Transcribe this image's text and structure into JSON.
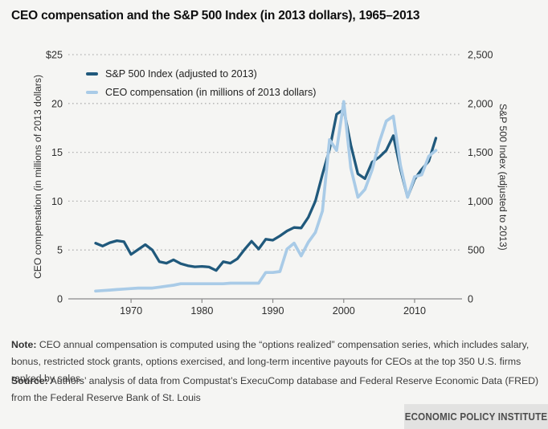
{
  "title": "CEO compensation and the S&P 500 Index (in 2013 dollars), 1965–2013",
  "chart_data": {
    "type": "line",
    "grid": "horizontal-dotted",
    "legend_position": "top-left-inside",
    "x_range": [
      1965,
      2013
    ],
    "x_ticks": [
      1970,
      1980,
      1990,
      2000,
      2010
    ],
    "left_axis": {
      "label": "CEO compensation (in millions of 2013 dollars)",
      "range": [
        0,
        25
      ],
      "tick_values": [
        25,
        20,
        15,
        10,
        5,
        0
      ],
      "ticks": [
        "$25",
        "20",
        "15",
        "10",
        "5",
        "0"
      ]
    },
    "right_axis": {
      "label": "S&P 500 Index (adjusted to 2013)",
      "range": [
        0,
        2500
      ],
      "tick_values": [
        2500,
        2000,
        1500,
        1000,
        500,
        0
      ],
      "ticks": [
        "2,500",
        "2,000",
        "1,500",
        "1,000",
        "500",
        "0"
      ]
    },
    "x": [
      1965,
      1966,
      1967,
      1968,
      1969,
      1970,
      1971,
      1972,
      1973,
      1974,
      1975,
      1976,
      1977,
      1978,
      1979,
      1980,
      1981,
      1982,
      1983,
      1984,
      1985,
      1986,
      1987,
      1988,
      1989,
      1990,
      1991,
      1992,
      1993,
      1994,
      1995,
      1996,
      1997,
      1998,
      1999,
      2000,
      2001,
      2002,
      2003,
      2004,
      2005,
      2006,
      2007,
      2008,
      2009,
      2010,
      2011,
      2012,
      2013
    ],
    "series": [
      {
        "name": "S&P 500 Index (adjusted to 2013)",
        "axis": "right",
        "color": "#20597c",
        "stroke_width": 3.3,
        "values": [
          570,
          540,
          575,
          595,
          585,
          455,
          505,
          555,
          500,
          380,
          365,
          400,
          360,
          340,
          328,
          332,
          326,
          290,
          380,
          365,
          410,
          505,
          590,
          510,
          610,
          600,
          645,
          695,
          730,
          725,
          835,
          1000,
          1275,
          1530,
          1890,
          1940,
          1575,
          1280,
          1230,
          1400,
          1450,
          1520,
          1670,
          1330,
          1040,
          1225,
          1325,
          1410,
          1645
        ]
      },
      {
        "name": "CEO compensation (in millions of 2013 dollars)",
        "axis": "left",
        "color": "#a9cbe7",
        "stroke_width": 3.7,
        "values": [
          0.8,
          0.85,
          0.9,
          0.95,
          1.0,
          1.05,
          1.1,
          1.1,
          1.1,
          1.2,
          1.3,
          1.4,
          1.55,
          1.55,
          1.55,
          1.55,
          1.55,
          1.55,
          1.55,
          1.6,
          1.6,
          1.6,
          1.6,
          1.6,
          2.7,
          2.7,
          2.8,
          5.1,
          5.7,
          4.4,
          5.8,
          6.8,
          9.0,
          16.3,
          15.2,
          20.2,
          13.4,
          10.4,
          11.2,
          13.2,
          16.0,
          18.2,
          18.7,
          13.7,
          10.4,
          12.5,
          12.7,
          14.6,
          15.2
        ]
      }
    ]
  },
  "note": {
    "label": "Note:",
    "text": " CEO annual compensation is computed using the “options realized” compensation series, which includes salary, bonus, restricted stock grants, options exercised, and long-term incentive payouts for CEOs at the top 350 U.S. firms ranked by sales."
  },
  "source": {
    "label": "Source:",
    "text": " Authors’ analysis of data from Compustat’s ExecuComp database and Federal Reserve Economic Data (FRED) from the Federal Reserve Bank of St. Louis"
  },
  "branding": {
    "name": "ECONOMIC POLICY INSTITUTE"
  }
}
